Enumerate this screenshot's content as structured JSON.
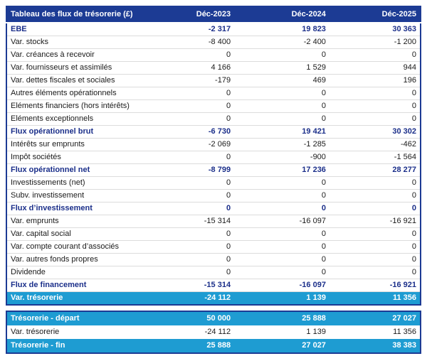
{
  "colors": {
    "header_bg": "#1c3b94",
    "table_border": "#1c3b94",
    "bold_row_text": "#1b2f8a",
    "teal_row_bg": "#1e9cd2",
    "body_text": "#1a1a1a",
    "row_divider": "#dcdcdc"
  },
  "chart_data": {
    "type": "table",
    "title": "Tableau des flux de trésorerie (£)",
    "columns": [
      "Déc-2023",
      "Déc-2024",
      "Déc-2025"
    ],
    "sections": {
      "main": [
        {
          "label": "EBE",
          "style": "bold",
          "values": [
            "-2 317",
            "19 823",
            "30 363"
          ]
        },
        {
          "label": "Var. stocks",
          "style": "normal",
          "values": [
            "-8 400",
            "-2 400",
            "-1 200"
          ]
        },
        {
          "label": "Var. créances à recevoir",
          "style": "normal",
          "values": [
            "0",
            "0",
            "0"
          ]
        },
        {
          "label": "Var. fournisseurs et assimilés",
          "style": "normal",
          "values": [
            "4 166",
            "1 529",
            "944"
          ]
        },
        {
          "label": "Var. dettes fiscales et sociales",
          "style": "normal",
          "values": [
            "-179",
            "469",
            "196"
          ]
        },
        {
          "label": "Autres éléments opérationnels",
          "style": "normal",
          "values": [
            "0",
            "0",
            "0"
          ]
        },
        {
          "label": "Eléments financiers (hors intérêts)",
          "style": "normal",
          "values": [
            "0",
            "0",
            "0"
          ]
        },
        {
          "label": "Eléments exceptionnels",
          "style": "normal",
          "values": [
            "0",
            "0",
            "0"
          ]
        },
        {
          "label": "Flux opérationnel brut",
          "style": "bold",
          "values": [
            "-6 730",
            "19 421",
            "30 302"
          ]
        },
        {
          "label": "Intérêts sur emprunts",
          "style": "normal",
          "values": [
            "-2 069",
            "-1 285",
            "-462"
          ]
        },
        {
          "label": "Impôt sociétés",
          "style": "normal",
          "values": [
            "0",
            "-900",
            "-1 564"
          ]
        },
        {
          "label": "Flux opérationnel net",
          "style": "bold",
          "values": [
            "-8 799",
            "17 236",
            "28 277"
          ]
        },
        {
          "label": "Investissements (net)",
          "style": "normal",
          "values": [
            "0",
            "0",
            "0"
          ]
        },
        {
          "label": "Subv. investissement",
          "style": "normal",
          "values": [
            "0",
            "0",
            "0"
          ]
        },
        {
          "label": "Flux d’investissement",
          "style": "bold",
          "values": [
            "0",
            "0",
            "0"
          ]
        },
        {
          "label": "Var. emprunts",
          "style": "normal",
          "values": [
            "-15 314",
            "-16 097",
            "-16 921"
          ]
        },
        {
          "label": "Var. capital social",
          "style": "normal",
          "values": [
            "0",
            "0",
            "0"
          ]
        },
        {
          "label": "Var. compte courant d’associés",
          "style": "normal",
          "values": [
            "0",
            "0",
            "0"
          ]
        },
        {
          "label": "Var. autres fonds propres",
          "style": "normal",
          "values": [
            "0",
            "0",
            "0"
          ]
        },
        {
          "label": "Dividende",
          "style": "normal",
          "values": [
            "0",
            "0",
            "0"
          ]
        },
        {
          "label": "Flux de financement",
          "style": "bold",
          "values": [
            "-15 314",
            "-16 097",
            "-16 921"
          ]
        },
        {
          "label": "Var. trésorerie",
          "style": "teal",
          "values": [
            "-24 112",
            "1 139",
            "11 356"
          ]
        }
      ],
      "summary": [
        {
          "label": "Trésorerie - départ",
          "style": "teal",
          "values": [
            "50 000",
            "25 888",
            "27 027"
          ]
        },
        {
          "label": "Var. trésorerie",
          "style": "normal",
          "values": [
            "-24 112",
            "1 139",
            "11 356"
          ]
        },
        {
          "label": "Trésorerie - fin",
          "style": "teal",
          "values": [
            "25 888",
            "27 027",
            "38 383"
          ]
        }
      ]
    }
  }
}
